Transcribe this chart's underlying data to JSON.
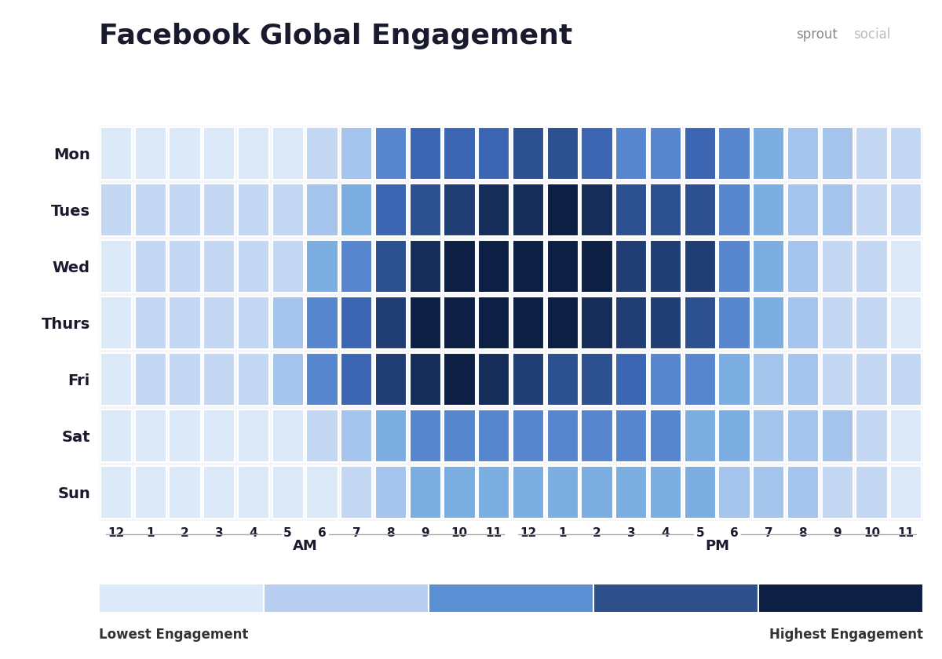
{
  "title": "Facebook Global Engagement",
  "days": [
    "Mon",
    "Tues",
    "Wed",
    "Thurs",
    "Fri",
    "Sat",
    "Sun"
  ],
  "hours": [
    "12",
    "1",
    "2",
    "3",
    "4",
    "5",
    "6",
    "7",
    "8",
    "9",
    "10",
    "11",
    "12",
    "1",
    "2",
    "3",
    "4",
    "5",
    "6",
    "7",
    "8",
    "9",
    "10",
    "11"
  ],
  "engagement": [
    [
      1,
      1,
      1,
      1,
      1,
      1,
      2,
      3,
      5,
      6,
      6,
      6,
      7,
      7,
      6,
      5,
      5,
      6,
      5,
      4,
      3,
      3,
      2,
      2
    ],
    [
      2,
      2,
      2,
      2,
      2,
      2,
      3,
      4,
      6,
      7,
      8,
      9,
      9,
      10,
      9,
      7,
      7,
      7,
      5,
      4,
      3,
      3,
      2,
      2
    ],
    [
      1,
      2,
      2,
      2,
      2,
      2,
      4,
      5,
      7,
      9,
      10,
      10,
      10,
      10,
      10,
      8,
      8,
      8,
      5,
      4,
      3,
      2,
      2,
      1
    ],
    [
      1,
      2,
      2,
      2,
      2,
      3,
      5,
      6,
      8,
      10,
      10,
      10,
      10,
      10,
      9,
      8,
      8,
      7,
      5,
      4,
      3,
      2,
      2,
      1
    ],
    [
      1,
      2,
      2,
      2,
      2,
      3,
      5,
      6,
      8,
      9,
      10,
      9,
      8,
      7,
      7,
      6,
      5,
      5,
      4,
      3,
      3,
      2,
      2,
      2
    ],
    [
      1,
      1,
      1,
      1,
      1,
      1,
      2,
      3,
      4,
      5,
      5,
      5,
      5,
      5,
      5,
      5,
      5,
      4,
      4,
      3,
      3,
      3,
      2,
      1
    ],
    [
      1,
      1,
      1,
      1,
      1,
      1,
      1,
      2,
      3,
      4,
      4,
      4,
      4,
      4,
      4,
      4,
      4,
      4,
      3,
      3,
      3,
      2,
      2,
      1
    ]
  ],
  "colormap_colors": [
    "#dce9f8",
    "#b8cef0",
    "#7aaee0",
    "#4472c4",
    "#2d5090",
    "#1a3566",
    "#0d1f44"
  ],
  "legend_colors": [
    "#dce9f8",
    "#b8cef0",
    "#5b8fd4",
    "#2d4f8a",
    "#0d1f44"
  ],
  "legend_label_low": "Lowest Engagement",
  "legend_label_high": "Highest Engagement",
  "background_color": "#ffffff",
  "panel_bg": "#f5f6fa",
  "title_fontsize": 26,
  "tick_fontsize": 11,
  "am_pm_fontsize": 13,
  "watermark_sprout_color": "#888888",
  "watermark_social_color": "#bbbbbb"
}
